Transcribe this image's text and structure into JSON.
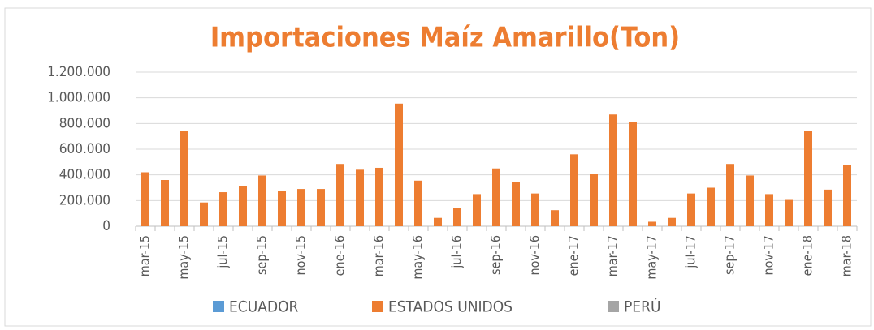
{
  "chart_data": {
    "type": "bar",
    "title": "Importaciones Maíz Amarillo(Ton)",
    "categories": [
      "mar-15",
      null,
      "may-15",
      null,
      "jul-15",
      null,
      "sep-15",
      null,
      "nov-15",
      null,
      "ene-16",
      null,
      "mar-16",
      null,
      "may-16",
      null,
      "jul-16",
      null,
      "sep-16",
      null,
      "nov-16",
      null,
      "ene-17",
      null,
      "mar-17",
      null,
      "may-17",
      null,
      "jul-17",
      null,
      "sep-17",
      null,
      "nov-17",
      null,
      "ene-18",
      null,
      "mar-18"
    ],
    "series": [
      {
        "name": "ECUADOR",
        "color": "#5b9bd5",
        "values": [
          0,
          0,
          0,
          0,
          0,
          0,
          0,
          0,
          0,
          0,
          0,
          0,
          0,
          0,
          0,
          0,
          0,
          0,
          0,
          0,
          0,
          0,
          0,
          0,
          0,
          0,
          0,
          0,
          0,
          0,
          0,
          0,
          0,
          0,
          0,
          0,
          0
        ]
      },
      {
        "name": "ESTADOS UNIDOS",
        "color": "#ed7d31",
        "values": [
          420000,
          360000,
          745000,
          185000,
          265000,
          310000,
          395000,
          275000,
          290000,
          290000,
          485000,
          440000,
          455000,
          955000,
          355000,
          65000,
          145000,
          250000,
          450000,
          345000,
          255000,
          125000,
          560000,
          405000,
          870000,
          810000,
          35000,
          65000,
          255000,
          300000,
          485000,
          395000,
          250000,
          205000,
          745000,
          285000,
          475000
        ]
      },
      {
        "name": "PERÚ",
        "color": "#a5a5a5",
        "values": [
          0,
          0,
          0,
          0,
          0,
          0,
          0,
          0,
          0,
          0,
          0,
          0,
          0,
          0,
          0,
          0,
          0,
          0,
          0,
          0,
          0,
          0,
          0,
          0,
          0,
          0,
          0,
          0,
          0,
          0,
          0,
          0,
          0,
          0,
          0,
          0,
          0
        ]
      }
    ],
    "ylim": [
      0,
      1200000
    ],
    "yticks": [
      0,
      {
        "value": 200000,
        "label": "200.000"
      },
      {
        "value": 400000,
        "label": "400.000"
      },
      {
        "value": 600000,
        "label": "600.000"
      },
      {
        "value": 800000,
        "label": "800.000"
      },
      {
        "value": 1000000,
        "label": "1.000.000"
      },
      {
        "value": 1200000,
        "label": "1.200.000"
      }
    ],
    "grid": true,
    "legend": "bottom"
  }
}
